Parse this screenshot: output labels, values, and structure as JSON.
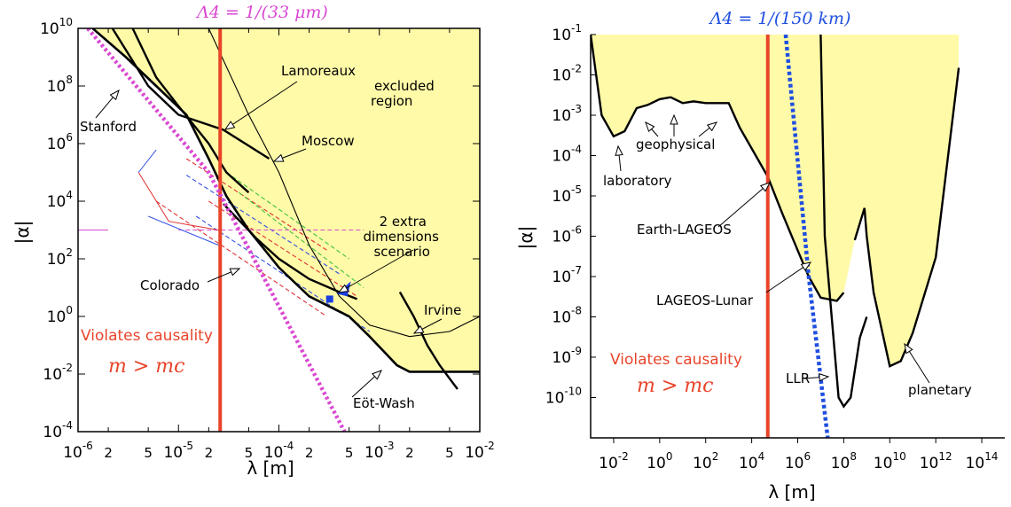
{
  "chart_data": [
    {
      "type": "area",
      "log_axes": {
        "x": true,
        "y": true
      },
      "xlabel": "λ  [m]",
      "ylabel": "|α|",
      "xlim": [
        1e-06,
        0.01
      ],
      "ylim": [
        0.0001,
        10000000000.0
      ],
      "x_ticks": [
        {
          "v": 1e-06,
          "label": "10-6",
          "major": true
        },
        {
          "v": 2e-06,
          "label": "2"
        },
        {
          "v": 5e-06,
          "label": "5"
        },
        {
          "v": 1e-05,
          "label": "10-5",
          "major": true
        },
        {
          "v": 2e-05,
          "label": "2"
        },
        {
          "v": 5e-05,
          "label": "5"
        },
        {
          "v": 0.0001,
          "label": "10-4",
          "major": true
        },
        {
          "v": 0.0002,
          "label": "2"
        },
        {
          "v": 0.0005,
          "label": "5"
        },
        {
          "v": 0.001,
          "label": "10-3",
          "major": true
        },
        {
          "v": 0.002,
          "label": "2"
        },
        {
          "v": 0.005,
          "label": "5"
        },
        {
          "v": 0.01,
          "label": "10-2",
          "major": true
        }
      ],
      "y_ticks": [
        {
          "v": 10000000000.0,
          "label": "1010"
        },
        {
          "v": 100000000.0,
          "label": "108"
        },
        {
          "v": 1000000.0,
          "label": "106"
        },
        {
          "v": 10000.0,
          "label": "104"
        },
        {
          "v": 100.0,
          "label": "102"
        },
        {
          "v": 1,
          "label": "100"
        },
        {
          "v": 0.01,
          "label": "10-2"
        },
        {
          "v": 0.0001,
          "label": "10-4"
        }
      ],
      "lambda_line": {
        "label": "Λ4 = 1/(33 μm)",
        "x": 2.6e-05,
        "color": "#d948d2"
      },
      "causality": {
        "label": "Violates causality",
        "condition": "m > mc",
        "color": "#e8442a"
      },
      "excluded_label": "excluded region",
      "annotations": [
        "Lamoreaux",
        "Stanford",
        "Moscow",
        "2 extra dimensions scenario",
        "Colorado",
        "Irvine",
        "Eöt-Wash"
      ],
      "highlight_color": "#fffaa8",
      "boundary": [
        [
          1.4e-06,
          10000000000.0
        ],
        [
          3e-06,
          1000000000.0
        ],
        [
          6e-06,
          100000000.0
        ],
        [
          1.2e-05,
          10000000.0
        ],
        [
          2e-05,
          300000.0
        ],
        [
          3e-05,
          15000.0
        ],
        [
          5e-05,
          1000.0
        ],
        [
          0.0001,
          50
        ],
        [
          0.0002,
          5
        ],
        [
          0.0005,
          1
        ],
        [
          0.0008,
          0.2
        ],
        [
          0.0015,
          0.02
        ],
        [
          0.002,
          0.012
        ],
        [
          0.005,
          0.012
        ],
        [
          0.01,
          0.012
        ]
      ],
      "series": [
        {
          "name": "Lamoreaux",
          "points": [
            [
              2.2e-06,
              10000000000.0
            ],
            [
              5e-06,
              100000000.0
            ],
            [
              1e-05,
              10000000.0
            ],
            [
              2.8e-05,
              3000000.0
            ],
            [
              8e-05,
              300000.0
            ]
          ]
        },
        {
          "name": "Stanford",
          "points": [
            [
              3.5e-06,
              10000000000.0
            ],
            [
              6e-06,
              200000000.0
            ],
            [
              1e-05,
              20000000.0
            ],
            [
              2e-05,
              1000000.0
            ],
            [
              3e-05,
              100000.0
            ],
            [
              5e-05,
              20000.0
            ]
          ]
        },
        {
          "name": "Colorado",
          "points": [
            [
              2.8e-05,
              8000.0
            ],
            [
              6e-05,
              500.0
            ],
            [
              0.0001,
              100.0
            ],
            [
              0.0002,
              20
            ],
            [
              0.0004,
              7
            ],
            [
              0.0006,
              4
            ]
          ]
        },
        {
          "name": "Irvine",
          "points": [
            [
              0.0016,
              7
            ],
            [
              0.0022,
              1
            ],
            [
              0.003,
              0.1
            ],
            [
              0.004,
              0.02
            ],
            [
              0.005,
              0.007
            ],
            [
              0.006,
              0.003
            ]
          ]
        },
        {
          "name": "Moscow",
          "points": [
            [
              2e-05,
              10000000000.0
            ],
            [
              5e-05,
              10000000.0
            ],
            [
              0.0001,
              100000.0
            ],
            [
              0.0002,
              300.0
            ],
            [
              0.0004,
              5
            ],
            [
              0.0008,
              0.5
            ],
            [
              0.002,
              0.2
            ],
            [
              0.005,
              0.3
            ],
            [
              0.01,
              1
            ]
          ]
        }
      ],
      "point": {
        "x": 0.00032,
        "y": 4
      }
    },
    {
      "type": "area",
      "log_axes": {
        "x": true,
        "y": true
      },
      "xlabel": "λ  [m]",
      "ylabel": "|α|",
      "xlim": [
        0.001,
        1000000000000000.0
      ],
      "ylim": [
        1e-11,
        0.1
      ],
      "x_ticks": [
        {
          "v": 0.01,
          "label": "10-2"
        },
        {
          "v": 1,
          "label": "100"
        },
        {
          "v": 100.0,
          "label": "102"
        },
        {
          "v": 10000.0,
          "label": "104"
        },
        {
          "v": 1000000.0,
          "label": "106"
        },
        {
          "v": 100000000.0,
          "label": "108"
        },
        {
          "v": 10000000000.0,
          "label": "1010"
        },
        {
          "v": 1000000000000.0,
          "label": "1012"
        },
        {
          "v": 100000000000000.0,
          "label": "1014"
        }
      ],
      "y_ticks": [
        {
          "v": 0.1,
          "label": "10-1"
        },
        {
          "v": 0.01,
          "label": "10-2"
        },
        {
          "v": 0.001,
          "label": "10-3"
        },
        {
          "v": 0.0001,
          "label": "10-4"
        },
        {
          "v": 1e-05,
          "label": "10-5"
        },
        {
          "v": 1e-06,
          "label": "10-6"
        },
        {
          "v": 1e-07,
          "label": "10-7"
        },
        {
          "v": 1e-08,
          "label": "10-8"
        },
        {
          "v": 1e-09,
          "label": "10-9"
        },
        {
          "v": 1e-10,
          "label": "10-10"
        }
      ],
      "lambda_line": {
        "label": "Λ4 = 1/(150 km)",
        "x": 50000.0,
        "color": "#1f4fe0"
      },
      "causality": {
        "label": "Violates causality",
        "condition": "m > mc",
        "color": "#e8442a"
      },
      "annotations": [
        "laboratory",
        "geophysical",
        "Earth-LAGEOS",
        "LAGEOS-Lunar",
        "LLR",
        "planetary"
      ],
      "highlight_color": "#fffaa8"
    }
  ]
}
